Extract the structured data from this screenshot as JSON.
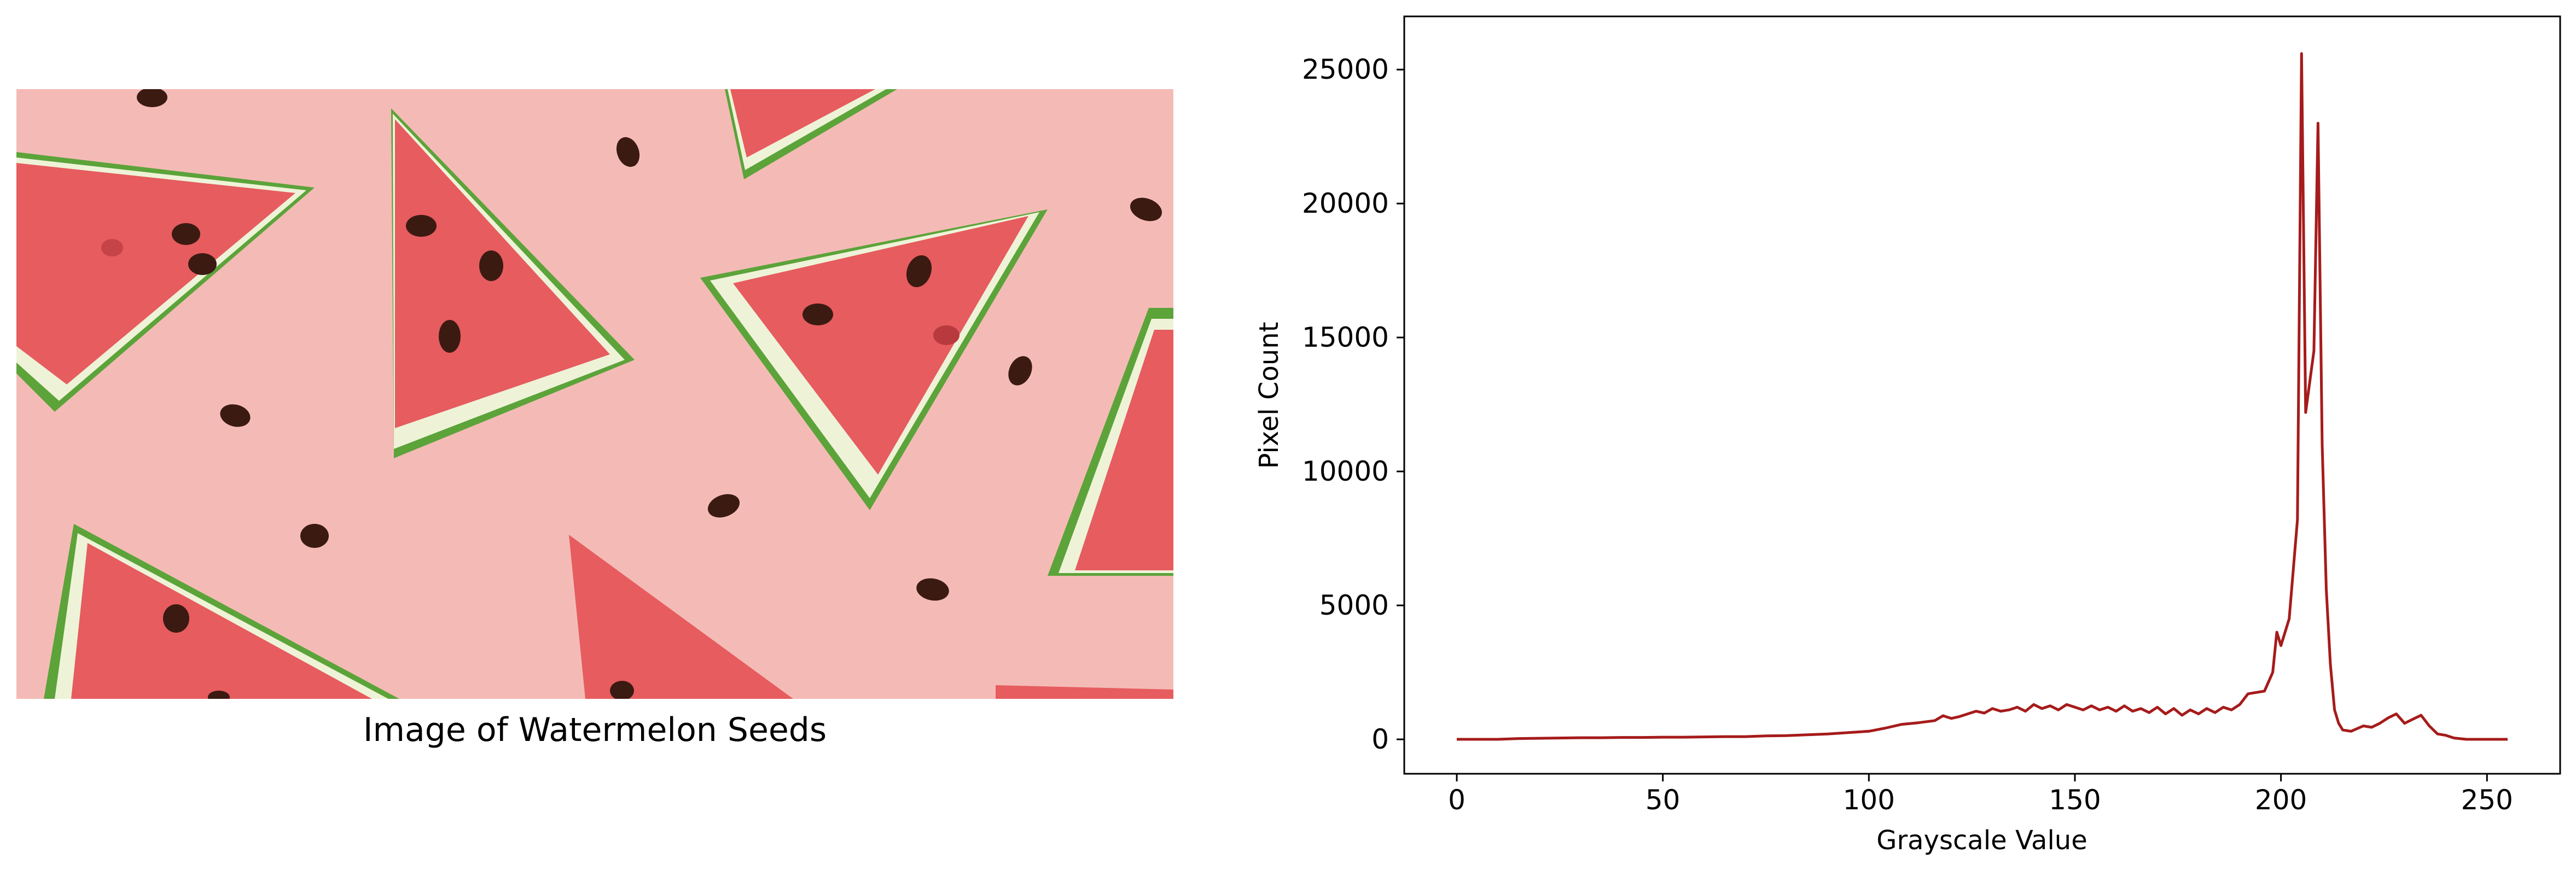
{
  "image": {
    "caption": "Image of Watermelon Seeds",
    "background_color": "#f2b9b5"
  },
  "chart_data": {
    "type": "line",
    "title": "",
    "xlabel": "Grayscale Value",
    "ylabel": "Pixel Count",
    "xlim": [
      -12.75,
      267.75
    ],
    "ylim": [
      -1285,
      26985
    ],
    "xticks": [
      0,
      50,
      100,
      150,
      200,
      250
    ],
    "yticks": [
      0,
      5000,
      10000,
      15000,
      20000,
      25000
    ],
    "grid": false,
    "line_color": "#a61b1b",
    "series": [
      {
        "values": [
          [
            0,
            0
          ],
          [
            5,
            0
          ],
          [
            10,
            0
          ],
          [
            15,
            30
          ],
          [
            20,
            40
          ],
          [
            25,
            50
          ],
          [
            30,
            60
          ],
          [
            35,
            60
          ],
          [
            40,
            70
          ],
          [
            45,
            70
          ],
          [
            50,
            80
          ],
          [
            55,
            80
          ],
          [
            60,
            90
          ],
          [
            65,
            100
          ],
          [
            70,
            100
          ],
          [
            75,
            130
          ],
          [
            80,
            140
          ],
          [
            85,
            170
          ],
          [
            90,
            200
          ],
          [
            95,
            250
          ],
          [
            100,
            300
          ],
          [
            104,
            420
          ],
          [
            108,
            560
          ],
          [
            112,
            620
          ],
          [
            116,
            700
          ],
          [
            118,
            880
          ],
          [
            120,
            780
          ],
          [
            122,
            850
          ],
          [
            124,
            950
          ],
          [
            126,
            1050
          ],
          [
            128,
            980
          ],
          [
            130,
            1150
          ],
          [
            132,
            1050
          ],
          [
            134,
            1100
          ],
          [
            136,
            1200
          ],
          [
            138,
            1050
          ],
          [
            140,
            1300
          ],
          [
            142,
            1150
          ],
          [
            144,
            1250
          ],
          [
            146,
            1100
          ],
          [
            148,
            1300
          ],
          [
            150,
            1200
          ],
          [
            152,
            1100
          ],
          [
            154,
            1250
          ],
          [
            156,
            1100
          ],
          [
            158,
            1200
          ],
          [
            160,
            1050
          ],
          [
            162,
            1250
          ],
          [
            164,
            1050
          ],
          [
            166,
            1150
          ],
          [
            168,
            1000
          ],
          [
            170,
            1200
          ],
          [
            172,
            950
          ],
          [
            174,
            1150
          ],
          [
            176,
            900
          ],
          [
            178,
            1100
          ],
          [
            180,
            950
          ],
          [
            182,
            1150
          ],
          [
            184,
            1000
          ],
          [
            186,
            1200
          ],
          [
            188,
            1100
          ],
          [
            190,
            1300
          ],
          [
            192,
            1700
          ],
          [
            194,
            1750
          ],
          [
            196,
            1800
          ],
          [
            198,
            2500
          ],
          [
            199,
            4000
          ],
          [
            200,
            3500
          ],
          [
            202,
            4500
          ],
          [
            204,
            8200
          ],
          [
            205,
            25600
          ],
          [
            206,
            12200
          ],
          [
            208,
            14500
          ],
          [
            209,
            23000
          ],
          [
            210,
            11000
          ],
          [
            211,
            5600
          ],
          [
            212,
            2800
          ],
          [
            213,
            1100
          ],
          [
            214,
            600
          ],
          [
            215,
            350
          ],
          [
            217,
            300
          ],
          [
            220,
            500
          ],
          [
            222,
            450
          ],
          [
            224,
            600
          ],
          [
            226,
            800
          ],
          [
            228,
            950
          ],
          [
            230,
            600
          ],
          [
            232,
            750
          ],
          [
            234,
            900
          ],
          [
            236,
            500
          ],
          [
            238,
            200
          ],
          [
            240,
            150
          ],
          [
            242,
            50
          ],
          [
            245,
            0
          ],
          [
            250,
            0
          ],
          [
            255,
            0
          ]
        ]
      }
    ]
  }
}
